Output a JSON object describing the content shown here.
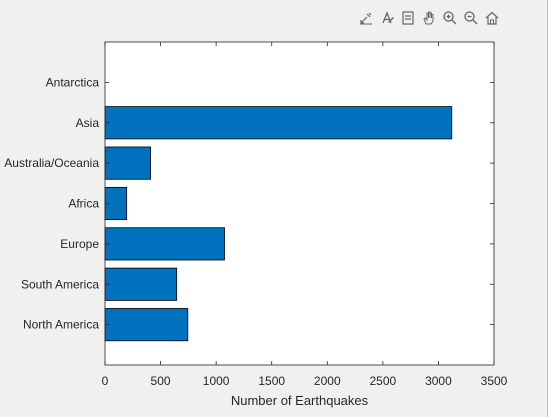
{
  "toolbar": {
    "buttons": [
      {
        "name": "export-icon",
        "label": ""
      },
      {
        "name": "brush-icon",
        "label": ""
      },
      {
        "name": "datatip-icon",
        "label": ""
      },
      {
        "name": "pan-hand-icon",
        "label": ""
      },
      {
        "name": "zoom-in-icon",
        "label": ""
      },
      {
        "name": "zoom-out-icon",
        "label": ""
      },
      {
        "name": "home-icon",
        "label": ""
      }
    ]
  },
  "colors": {
    "bar_fill": "#0072bd",
    "bar_edge": "#000000",
    "axes_bg": "#ffffff",
    "figure_bg": "#f0f0f0"
  },
  "chart_data": {
    "type": "bar",
    "orientation": "horizontal",
    "categories": [
      "North America",
      "South America",
      "Europe",
      "Africa",
      "Australia/Oceania",
      "Asia",
      "Antarctica"
    ],
    "values": [
      745,
      645,
      1075,
      195,
      410,
      3120,
      0
    ],
    "title": "",
    "xlabel": "Number of Earthquakes",
    "ylabel": "",
    "xlim": [
      0,
      3500
    ],
    "xticks": [
      0,
      500,
      1000,
      1500,
      2000,
      2500,
      3000,
      3500
    ],
    "grid": false,
    "legend": "none"
  }
}
